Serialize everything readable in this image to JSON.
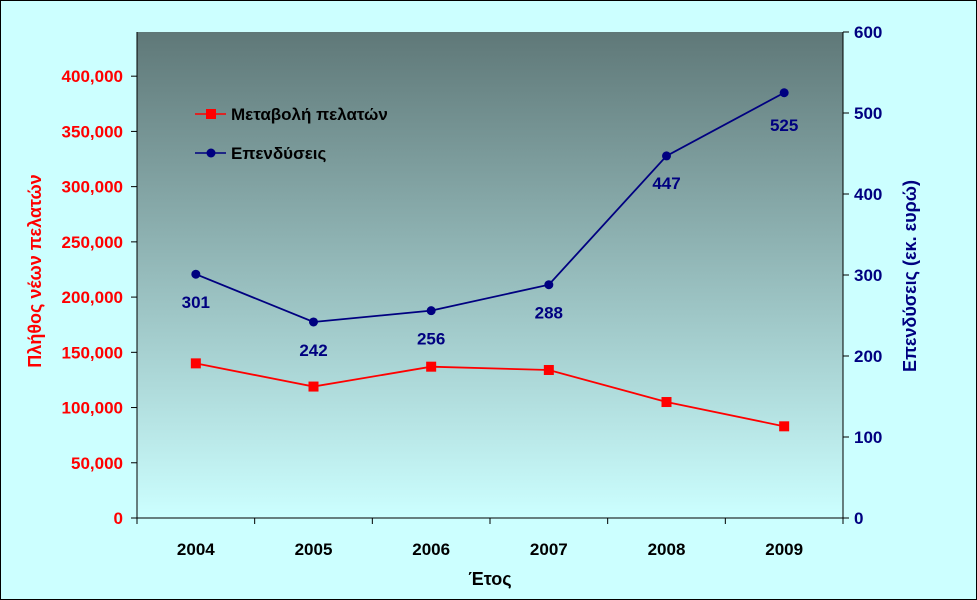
{
  "chart_data": {
    "type": "line",
    "categories": [
      "2004",
      "2005",
      "2006",
      "2007",
      "2008",
      "2009"
    ],
    "xlabel": "Έτος",
    "ylabel_left": "Πλήθος νέων πελατών",
    "ylabel_right": "Επενδύσεις (εκ. ευρώ)",
    "ylim_left": [
      0,
      440000
    ],
    "ylim_right": [
      0,
      600
    ],
    "yticks_left": [
      0,
      50000,
      100000,
      150000,
      200000,
      250000,
      300000,
      350000,
      400000
    ],
    "yticks_left_labels": [
      "0",
      "50,000",
      "100,000",
      "150,000",
      "200,000",
      "250,000",
      "300,000",
      "350,000",
      "400,000"
    ],
    "yticks_right": [
      0,
      100,
      200,
      300,
      400,
      500,
      600
    ],
    "yticks_right_labels": [
      "0",
      "100",
      "200",
      "300",
      "400",
      "500",
      "600"
    ],
    "legend_position": "top-left",
    "series": [
      {
        "name": "Μεταβολή πελατών",
        "axis": "left",
        "color": "#ff0000",
        "marker": "square",
        "values": [
          140000,
          119000,
          137000,
          134000,
          105000,
          83000
        ]
      },
      {
        "name": "Επενδύσεις",
        "axis": "right",
        "color": "#000080",
        "marker": "circle",
        "values": [
          301,
          242,
          256,
          288,
          447,
          525
        ],
        "data_labels": [
          "301",
          "242",
          "256",
          "288",
          "447",
          "525"
        ]
      }
    ],
    "colors": {
      "page_background": "#ccffff",
      "plot_gradient_top": "#5f7878",
      "plot_gradient_bottom": "#ccffff",
      "left_axis": "#ff0000",
      "right_axis": "#000080",
      "x_axis_text": "#000000"
    }
  }
}
